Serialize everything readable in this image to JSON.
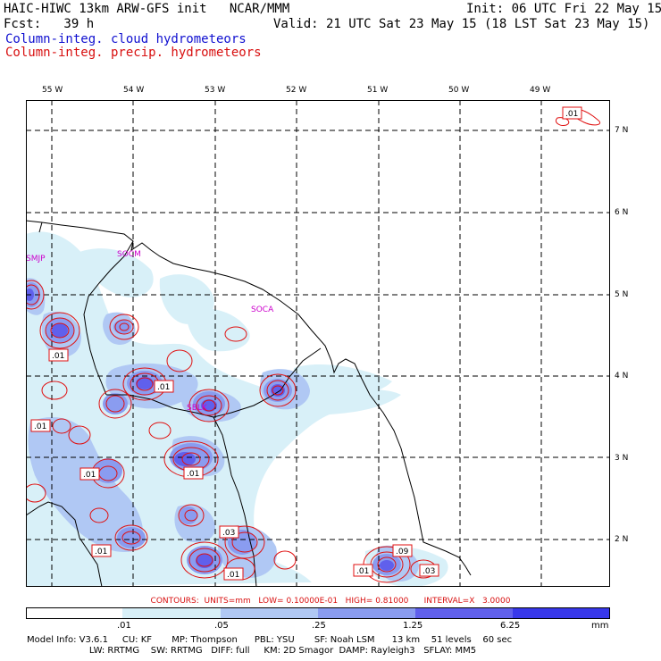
{
  "header": {
    "model_line": "HAIC-HIWC 13km ARW-GFS init   NCAR/MMM",
    "init_line": "Init: 06 UTC Fri 22 May 15",
    "fcst_line": "Fcst:   39 h",
    "valid_line": "Valid: 21 UTC Sat 23 May 15 (18 LST Sat 23 May 15)",
    "field_cloud": "Column-integ. cloud hydrometeors",
    "field_precip": "Column-integ. precip. hydrometeors"
  },
  "map": {
    "lon_labels": [
      "55 W",
      "54 W",
      "53 W",
      "52 W",
      "51 W",
      "50 W",
      "49 W"
    ],
    "lat_labels": [
      "7 N",
      "6 N",
      "5 N",
      "4 N",
      "3 N",
      "2 N"
    ],
    "place_labels": [
      "SMJP",
      "SOCM",
      "SOCA",
      "SBLK"
    ],
    "contour_labels": [
      ".01",
      ".01",
      ".01",
      ".01",
      ".01",
      ".01",
      ".03",
      ".01",
      ".01",
      ".09",
      ".03",
      ".01"
    ],
    "colors": {
      "land_outline": "#000000",
      "grid": "#000000",
      "precip_contour": "#e01010",
      "place_label": "#cc00cc"
    }
  },
  "contours_line": "CONTOURS:  UNITS=mm   LOW= 0.10000E-01   HIGH= 0.81000      INTERVAL=X   3.0000",
  "colorbar": {
    "ticks": [
      ".01",
      ".05",
      ".25",
      "1.25",
      "6.25",
      "mm"
    ],
    "colors": [
      "#ffffff",
      "#d8f0f8",
      "#b0c8f4",
      "#8a9cf0",
      "#6060ec",
      "#3838ea",
      "#1010e8"
    ]
  },
  "model_info": {
    "line1": "Model Info: V3.6.1     CU: KF       MP: Thompson      PBL: YSU       SF: Noah LSM      13 km    51 levels    60 sec",
    "line2": "                      LW: RRTMG    SW: RRTMG   DIFF: full     KM: 2D Smagor  DAMP: Rayleigh3   SFLAY: MM5"
  }
}
